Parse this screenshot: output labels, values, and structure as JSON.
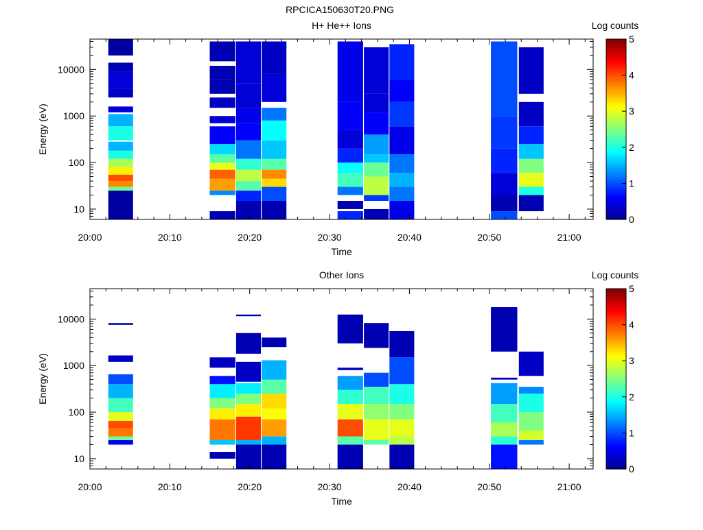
{
  "figure_title": "RPCICA150630T20.PNG",
  "colors": {
    "background": "#ffffff",
    "axes": "#000000",
    "colormap": [
      "#00008f",
      "#0000ff",
      "#0080ff",
      "#00ffff",
      "#80ff80",
      "#ffff00",
      "#ff8000",
      "#ff0000",
      "#800000"
    ]
  },
  "chart_data": [
    {
      "type": "heatmap",
      "title": "H+ He++ Ions",
      "xlabel": "Time",
      "ylabel": "Energy (eV)",
      "x_unit": "minutes after 20:00",
      "xlim": [
        0,
        63
      ],
      "xticks": [
        {
          "value": 0,
          "label": "20:00"
        },
        {
          "value": 10,
          "label": "20:10"
        },
        {
          "value": 20,
          "label": "20:20"
        },
        {
          "value": 30,
          "label": "20:30"
        },
        {
          "value": 40,
          "label": "20:40"
        },
        {
          "value": 50,
          "label": "20:50"
        },
        {
          "value": 60,
          "label": "21:00"
        }
      ],
      "yscale": "log",
      "ylim": [
        6,
        45000
      ],
      "yticks": [
        {
          "value": 10,
          "label": "10"
        },
        {
          "value": 100,
          "label": "100"
        },
        {
          "value": 1000,
          "label": "1000"
        },
        {
          "value": 10000,
          "label": "10000"
        }
      ],
      "colorbar": {
        "label": "Log counts",
        "range": [
          0,
          5
        ],
        "ticks": [
          "0",
          "1",
          "2",
          "3",
          "4",
          "5"
        ]
      },
      "columns": [
        {
          "t_start": 2.3,
          "t_end": 5.4,
          "bins": [
            [
              6,
              25,
              0.1
            ],
            [
              25,
              30,
              2.4
            ],
            [
              30,
              40,
              3.7
            ],
            [
              40,
              55,
              4.0
            ],
            [
              55,
              80,
              3.2
            ],
            [
              80,
              120,
              2.7
            ],
            [
              120,
              180,
              2.0
            ],
            [
              180,
              280,
              1.5
            ],
            [
              300,
              600,
              2.0
            ],
            [
              600,
              1100,
              1.5
            ],
            [
              1200,
              1600,
              0.4
            ],
            [
              2500,
              4000,
              0.3
            ],
            [
              4000,
              9000,
              0.4
            ],
            [
              9000,
              14000,
              0.2
            ],
            [
              20000,
              45000,
              0.1
            ]
          ]
        },
        {
          "t_start": 15.0,
          "t_end": 18.2,
          "bins": [
            [
              6,
              9,
              0.2
            ],
            [
              20,
              25,
              1.3
            ],
            [
              25,
              45,
              3.6
            ],
            [
              45,
              70,
              3.9
            ],
            [
              70,
              100,
              3.0
            ],
            [
              100,
              150,
              2.3
            ],
            [
              150,
              250,
              1.7
            ],
            [
              250,
              600,
              0.6
            ],
            [
              700,
              1000,
              0.4
            ],
            [
              1500,
              2500,
              0.3
            ],
            [
              3000,
              6000,
              0.2
            ],
            [
              6000,
              12000,
              0.2
            ],
            [
              15000,
              40000,
              0.2
            ]
          ]
        },
        {
          "t_start": 18.3,
          "t_end": 21.4,
          "bins": [
            [
              6,
              15,
              0.2
            ],
            [
              15,
              25,
              0.8
            ],
            [
              25,
              40,
              2.3
            ],
            [
              40,
              70,
              2.8
            ],
            [
              70,
              120,
              2.1
            ],
            [
              120,
              300,
              1.2
            ],
            [
              300,
              700,
              0.6
            ],
            [
              700,
              1500,
              0.5
            ],
            [
              1500,
              5000,
              0.4
            ],
            [
              5000,
              40000,
              0.4
            ]
          ]
        },
        {
          "t_start": 21.5,
          "t_end": 24.6,
          "bins": [
            [
              6,
              15,
              0.2
            ],
            [
              15,
              30,
              1.0
            ],
            [
              30,
              45,
              3.3
            ],
            [
              45,
              70,
              3.7
            ],
            [
              70,
              120,
              2.3
            ],
            [
              120,
              300,
              1.6
            ],
            [
              300,
              800,
              1.9
            ],
            [
              800,
              1500,
              1.2
            ],
            [
              2000,
              8000,
              0.4
            ],
            [
              8000,
              40000,
              0.3
            ]
          ]
        },
        {
          "t_start": 31.0,
          "t_end": 34.2,
          "bins": [
            [
              6,
              9,
              0.8
            ],
            [
              10,
              15,
              0.2
            ],
            [
              20,
              30,
              1.2
            ],
            [
              30,
              60,
              2.2
            ],
            [
              60,
              100,
              1.9
            ],
            [
              100,
              200,
              0.8
            ],
            [
              200,
              500,
              0.4
            ],
            [
              500,
              2000,
              0.6
            ],
            [
              2000,
              40000,
              0.5
            ]
          ]
        },
        {
          "t_start": 34.3,
          "t_end": 37.4,
          "bins": [
            [
              6,
              10,
              0.2
            ],
            [
              15,
              20,
              0.9
            ],
            [
              20,
              50,
              2.8
            ],
            [
              50,
              100,
              2.4
            ],
            [
              100,
              150,
              1.6
            ],
            [
              150,
              400,
              1.4
            ],
            [
              400,
              1200,
              0.6
            ],
            [
              1200,
              3000,
              0.4
            ],
            [
              3000,
              30000,
              0.4
            ]
          ]
        },
        {
          "t_start": 37.5,
          "t_end": 40.6,
          "bins": [
            [
              6,
              15,
              0.5
            ],
            [
              15,
              30,
              1.2
            ],
            [
              30,
              60,
              1.5
            ],
            [
              60,
              150,
              1.2
            ],
            [
              150,
              600,
              0.5
            ],
            [
              600,
              2000,
              0.9
            ],
            [
              2000,
              6000,
              0.6
            ],
            [
              6000,
              35000,
              0.8
            ]
          ]
        },
        {
          "t_start": 50.2,
          "t_end": 53.5,
          "bins": [
            [
              6,
              9,
              1.0
            ],
            [
              9,
              20,
              0.2
            ],
            [
              20,
              60,
              0.4
            ],
            [
              60,
              200,
              0.8
            ],
            [
              200,
              1000,
              0.9
            ],
            [
              1000,
              40000,
              1.0
            ]
          ]
        },
        {
          "t_start": 53.7,
          "t_end": 56.8,
          "bins": [
            [
              9,
              20,
              0.2
            ],
            [
              20,
              30,
              2.0
            ],
            [
              30,
              60,
              3.0
            ],
            [
              60,
              120,
              2.5
            ],
            [
              120,
              250,
              1.6
            ],
            [
              250,
              600,
              0.8
            ],
            [
              600,
              2000,
              0.3
            ],
            [
              3000,
              30000,
              0.3
            ]
          ]
        }
      ]
    },
    {
      "type": "heatmap",
      "title": "Other Ions",
      "xlabel": "Time",
      "ylabel": "Energy (eV)",
      "x_unit": "minutes after 20:00",
      "xlim": [
        0,
        63
      ],
      "xticks": [
        {
          "value": 0,
          "label": "20:00"
        },
        {
          "value": 10,
          "label": "20:10"
        },
        {
          "value": 20,
          "label": "20:20"
        },
        {
          "value": 30,
          "label": "20:30"
        },
        {
          "value": 40,
          "label": "20:40"
        },
        {
          "value": 50,
          "label": "20:50"
        },
        {
          "value": 60,
          "label": "21:00"
        }
      ],
      "yscale": "log",
      "ylim": [
        6,
        45000
      ],
      "yticks": [
        {
          "value": 10,
          "label": "10"
        },
        {
          "value": 100,
          "label": "100"
        },
        {
          "value": 1000,
          "label": "1000"
        },
        {
          "value": 10000,
          "label": "10000"
        }
      ],
      "colorbar": {
        "label": "Log counts",
        "range": [
          0,
          5
        ],
        "ticks": [
          "0",
          "1",
          "2",
          "3",
          "4",
          "5"
        ]
      },
      "columns": [
        {
          "t_start": 2.3,
          "t_end": 5.4,
          "bins": [
            [
              20,
              25,
              0.5
            ],
            [
              25,
              30,
              2.4
            ],
            [
              30,
              45,
              3.8
            ],
            [
              45,
              65,
              4.0
            ],
            [
              65,
              100,
              3.0
            ],
            [
              100,
              200,
              2.2
            ],
            [
              200,
              400,
              1.5
            ],
            [
              400,
              650,
              1.0
            ],
            [
              1200,
              1650,
              0.3
            ],
            [
              7500,
              8200,
              0.2
            ]
          ]
        },
        {
          "t_start": 15.0,
          "t_end": 18.2,
          "bins": [
            [
              10,
              14,
              0.2
            ],
            [
              20,
              25,
              1.6
            ],
            [
              25,
              70,
              3.8
            ],
            [
              70,
              120,
              3.2
            ],
            [
              120,
              200,
              2.5
            ],
            [
              200,
              400,
              1.8
            ],
            [
              400,
              600,
              0.7
            ],
            [
              900,
              1500,
              0.3
            ]
          ]
        },
        {
          "t_start": 18.3,
          "t_end": 21.4,
          "bins": [
            [
              6,
              20,
              0.2
            ],
            [
              20,
              25,
              1.5
            ],
            [
              25,
              80,
              4.1
            ],
            [
              80,
              150,
              3.2
            ],
            [
              150,
              250,
              2.5
            ],
            [
              250,
              420,
              1.8
            ],
            [
              450,
              1200,
              0.3
            ],
            [
              1800,
              5000,
              0.2
            ],
            [
              11500,
              12500,
              0.2
            ]
          ]
        },
        {
          "t_start": 21.5,
          "t_end": 24.6,
          "bins": [
            [
              6,
              20,
              0.2
            ],
            [
              20,
              30,
              1.5
            ],
            [
              30,
              70,
              3.6
            ],
            [
              70,
              120,
              3.1
            ],
            [
              120,
              250,
              3.3
            ],
            [
              250,
              500,
              2.3
            ],
            [
              500,
              1300,
              1.5
            ],
            [
              2500,
              4000,
              0.2
            ]
          ]
        },
        {
          "t_start": 31.0,
          "t_end": 34.2,
          "bins": [
            [
              6,
              20,
              0.2
            ],
            [
              20,
              30,
              2.3
            ],
            [
              30,
              70,
              4.0
            ],
            [
              70,
              150,
              3.0
            ],
            [
              150,
              300,
              2.1
            ],
            [
              300,
              600,
              1.4
            ],
            [
              800,
              900,
              0.3
            ],
            [
              3000,
              12500,
              0.2
            ]
          ]
        },
        {
          "t_start": 34.3,
          "t_end": 37.4,
          "bins": [
            [
              20,
              25,
              2.3
            ],
            [
              25,
              70,
              3.0
            ],
            [
              70,
              150,
              2.6
            ],
            [
              150,
              350,
              2.2
            ],
            [
              350,
              700,
              1.0
            ],
            [
              2400,
              8200,
              0.2
            ]
          ]
        },
        {
          "t_start": 37.5,
          "t_end": 40.6,
          "bins": [
            [
              6,
              20,
              0.2
            ],
            [
              20,
              30,
              2.8
            ],
            [
              30,
              70,
              3.0
            ],
            [
              70,
              150,
              2.5
            ],
            [
              150,
              400,
              2.0
            ],
            [
              400,
              1500,
              1.0
            ],
            [
              1500,
              5500,
              0.2
            ]
          ]
        },
        {
          "t_start": 50.2,
          "t_end": 53.5,
          "bins": [
            [
              6,
              20,
              0.7
            ],
            [
              20,
              30,
              2.1
            ],
            [
              30,
              60,
              2.7
            ],
            [
              60,
              150,
              2.2
            ],
            [
              150,
              420,
              1.4
            ],
            [
              500,
              550,
              0.3
            ],
            [
              2000,
              18000,
              0.2
            ]
          ]
        },
        {
          "t_start": 53.7,
          "t_end": 56.8,
          "bins": [
            [
              20,
              25,
              1.2
            ],
            [
              25,
              40,
              2.9
            ],
            [
              40,
              100,
              2.5
            ],
            [
              100,
              250,
              2.0
            ],
            [
              250,
              350,
              1.3
            ],
            [
              600,
              2000,
              0.3
            ]
          ]
        }
      ]
    }
  ]
}
